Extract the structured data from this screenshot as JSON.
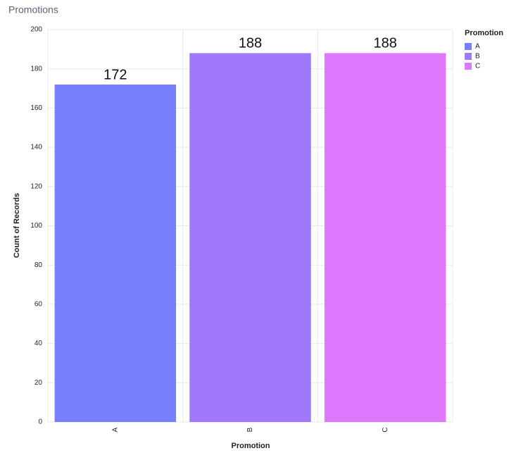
{
  "chart_data": {
    "type": "bar",
    "title": "Promotions",
    "x_label": "Promotion",
    "y_label": "Count of Records",
    "categories": [
      "A",
      "B",
      "C"
    ],
    "values": [
      172,
      188,
      188
    ],
    "colors": [
      "#787ffe",
      "#a078fc",
      "#de78fc"
    ],
    "legend_title": "Promotion",
    "legend": "top-right",
    "ylim": [
      0,
      200
    ],
    "yticks": [
      0,
      20,
      40,
      60,
      80,
      100,
      120,
      140,
      160,
      180,
      200
    ],
    "grid": true
  }
}
